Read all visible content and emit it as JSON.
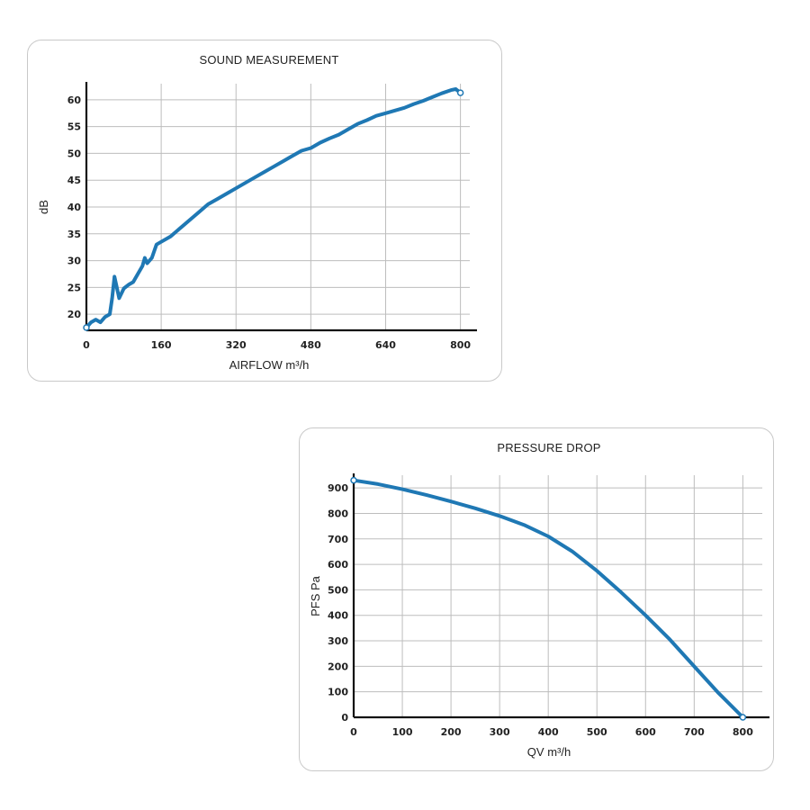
{
  "chart_data": [
    {
      "type": "line",
      "title": "SOUND MEASUREMENT",
      "xlabel": "AIRFLOW m³/h",
      "ylabel": "dB",
      "xlim": [
        0,
        820
      ],
      "ylim": [
        17,
        63
      ],
      "xticks": [
        0,
        160,
        320,
        480,
        640,
        800
      ],
      "yticks": [
        20,
        25,
        30,
        35,
        40,
        45,
        50,
        55,
        60
      ],
      "grid": true,
      "color": "#1f78b4",
      "series": [
        {
          "x": [
            0,
            10,
            20,
            30,
            40,
            50,
            55,
            60,
            65,
            70,
            80,
            90,
            100,
            110,
            120,
            125,
            130,
            140,
            150,
            160,
            180,
            200,
            220,
            240,
            260,
            280,
            300,
            320,
            340,
            360,
            380,
            400,
            420,
            440,
            460,
            480,
            500,
            520,
            540,
            560,
            580,
            600,
            620,
            640,
            660,
            680,
            700,
            720,
            740,
            760,
            780,
            790,
            800
          ],
          "y": [
            17.5,
            18.5,
            19,
            18.5,
            19.5,
            20,
            23,
            27,
            25,
            23,
            24.8,
            25.5,
            26,
            27.5,
            29,
            30.5,
            29.5,
            30.5,
            33,
            33.5,
            34.5,
            36,
            37.5,
            39,
            40.5,
            41.5,
            42.5,
            43.5,
            44.5,
            45.5,
            46.5,
            47.5,
            48.5,
            49.5,
            50.5,
            51,
            52,
            52.8,
            53.5,
            54.5,
            55.5,
            56.2,
            57,
            57.5,
            58,
            58.5,
            59.2,
            59.8,
            60.5,
            61.2,
            61.8,
            62,
            61.3
          ]
        }
      ]
    },
    {
      "type": "line",
      "title": "PRESSURE DROP",
      "xlabel": "QV m³/h",
      "ylabel": "PFS Pa",
      "xlim": [
        0,
        840
      ],
      "ylim": [
        0,
        950
      ],
      "xticks": [
        0,
        100,
        200,
        300,
        400,
        500,
        600,
        700,
        800
      ],
      "yticks": [
        0,
        100,
        200,
        300,
        400,
        500,
        600,
        700,
        800,
        900
      ],
      "grid": true,
      "color": "#1f78b4",
      "series": [
        {
          "x": [
            0,
            50,
            100,
            150,
            200,
            250,
            300,
            350,
            400,
            450,
            500,
            550,
            600,
            650,
            700,
            750,
            800
          ],
          "y": [
            930,
            915,
            895,
            872,
            847,
            820,
            790,
            755,
            710,
            650,
            575,
            490,
            400,
            305,
            200,
            95,
            0
          ]
        }
      ]
    }
  ]
}
